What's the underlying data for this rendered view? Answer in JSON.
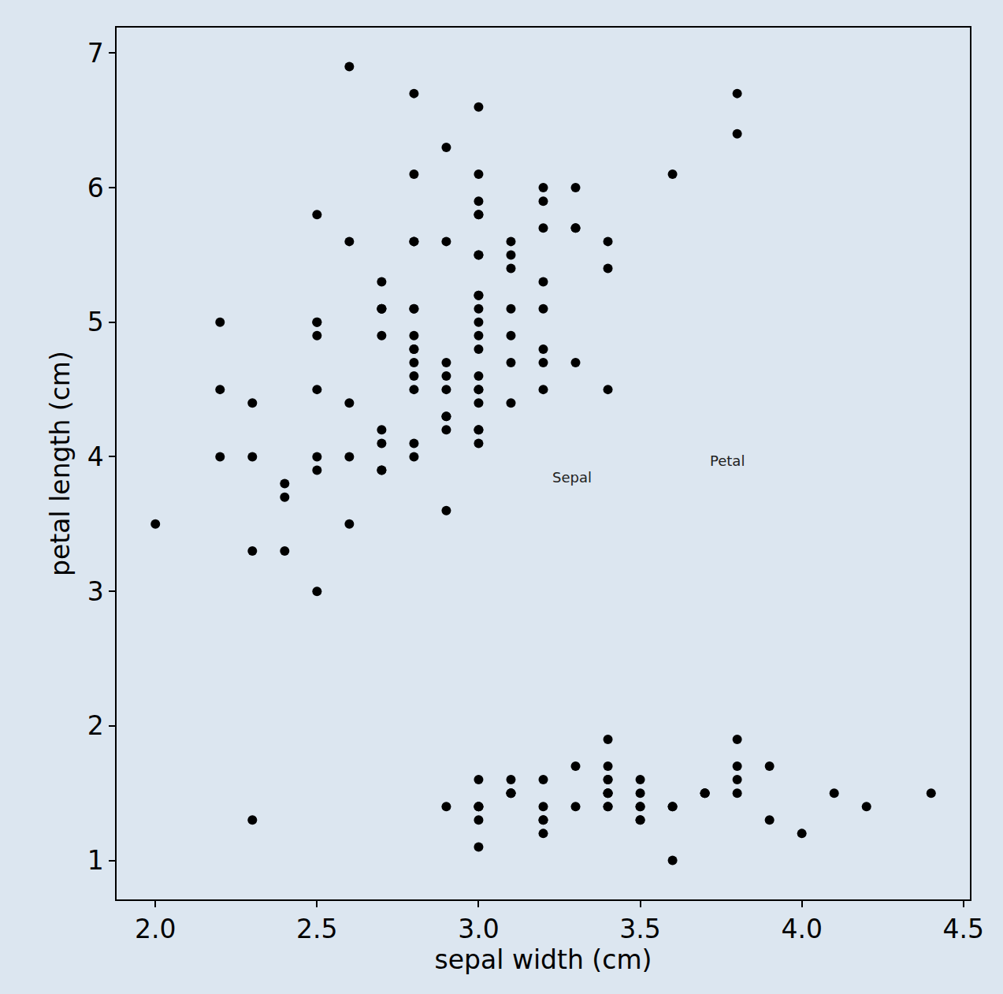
{
  "chart_data": {
    "type": "scatter",
    "x_label": "sepal width (cm)",
    "y_label": "petal length (cm)",
    "color": "#000000",
    "marker": "circle",
    "grid": false,
    "x": [
      3.5,
      3.0,
      3.2,
      3.1,
      3.6,
      3.9,
      3.4,
      3.4,
      2.9,
      3.1,
      3.7,
      3.4,
      3.0,
      3.0,
      4.0,
      4.4,
      3.9,
      3.5,
      3.8,
      3.8,
      3.4,
      3.7,
      3.6,
      3.3,
      3.4,
      3.0,
      3.4,
      3.5,
      3.4,
      3.2,
      3.1,
      3.4,
      4.1,
      4.2,
      3.1,
      3.2,
      3.5,
      3.6,
      3.0,
      3.4,
      3.5,
      2.3,
      3.2,
      3.5,
      3.8,
      3.0,
      3.8,
      3.2,
      3.7,
      3.3,
      3.2,
      3.2,
      3.1,
      2.3,
      2.8,
      2.8,
      3.3,
      2.4,
      2.9,
      2.7,
      2.0,
      3.0,
      2.2,
      2.9,
      2.9,
      3.1,
      3.0,
      2.7,
      2.2,
      2.5,
      3.2,
      2.8,
      2.5,
      2.8,
      2.9,
      3.0,
      2.8,
      3.0,
      2.9,
      2.6,
      2.4,
      2.4,
      2.7,
      2.7,
      3.0,
      3.4,
      3.1,
      2.3,
      3.0,
      2.5,
      2.6,
      3.0,
      2.6,
      2.3,
      2.7,
      3.0,
      2.9,
      2.9,
      2.5,
      2.8,
      3.3,
      2.7,
      3.0,
      2.9,
      3.0,
      3.0,
      2.5,
      2.9,
      2.5,
      3.6,
      3.2,
      2.7,
      3.0,
      2.5,
      2.8,
      3.2,
      3.0,
      3.8,
      2.6,
      2.2,
      3.2,
      2.8,
      2.8,
      2.7,
      3.3,
      3.2,
      2.8,
      3.0,
      2.8,
      3.0,
      2.8,
      3.8,
      2.8,
      2.8,
      2.6,
      3.0,
      3.4,
      3.1,
      3.0,
      3.1,
      3.1,
      3.1,
      2.7,
      3.2,
      3.3,
      3.0,
      2.5,
      3.0,
      3.4,
      3.0
    ],
    "values": [
      1.4,
      1.4,
      1.3,
      1.5,
      1.4,
      1.7,
      1.4,
      1.5,
      1.4,
      1.5,
      1.5,
      1.6,
      1.4,
      1.1,
      1.2,
      1.5,
      1.3,
      1.4,
      1.7,
      1.5,
      1.7,
      1.5,
      1.0,
      1.7,
      1.9,
      1.6,
      1.6,
      1.5,
      1.4,
      1.6,
      1.6,
      1.5,
      1.5,
      1.4,
      1.5,
      1.2,
      1.3,
      1.4,
      1.3,
      1.5,
      1.3,
      1.3,
      1.3,
      1.6,
      1.9,
      1.4,
      1.6,
      1.4,
      1.5,
      1.4,
      4.7,
      4.5,
      4.9,
      4.0,
      4.6,
      4.5,
      4.7,
      3.3,
      4.6,
      3.9,
      3.5,
      4.2,
      4.0,
      4.7,
      3.6,
      4.4,
      4.5,
      4.1,
      4.5,
      3.9,
      4.8,
      4.0,
      4.9,
      4.7,
      4.3,
      4.4,
      4.8,
      5.0,
      4.5,
      3.5,
      3.8,
      3.7,
      3.9,
      5.1,
      4.5,
      4.5,
      4.7,
      4.4,
      4.1,
      4.0,
      4.4,
      4.6,
      4.0,
      3.3,
      4.2,
      4.2,
      4.2,
      4.3,
      3.0,
      4.1,
      6.0,
      5.1,
      5.9,
      5.6,
      5.8,
      6.6,
      4.5,
      6.3,
      5.8,
      6.1,
      5.1,
      5.3,
      5.5,
      5.0,
      5.1,
      5.3,
      5.5,
      6.7,
      6.9,
      5.0,
      5.7,
      4.9,
      6.7,
      4.9,
      5.7,
      6.0,
      4.8,
      4.9,
      5.6,
      5.8,
      6.1,
      6.4,
      5.6,
      5.1,
      5.6,
      6.1,
      5.6,
      5.5,
      4.8,
      5.4,
      5.6,
      5.1,
      5.1,
      5.9,
      5.7,
      5.2,
      5.0,
      5.2,
      5.4,
      5.1
    ],
    "xlim": [
      1.88,
      4.52
    ],
    "xticks": [
      {
        "value": 2.0,
        "label": "2.0"
      },
      {
        "value": 2.5,
        "label": "2.5"
      },
      {
        "value": 3.0,
        "label": "3.0"
      },
      {
        "value": 3.5,
        "label": "3.5"
      },
      {
        "value": 4.0,
        "label": "4.0"
      },
      {
        "value": 4.5,
        "label": "4.5"
      }
    ],
    "ylim": [
      0.71,
      7.19
    ],
    "yticks": [
      1,
      2,
      3,
      4,
      5,
      6,
      7
    ],
    "annotations": [
      {
        "text": "Sepal",
        "x": 3.29,
        "y": 3.85
      },
      {
        "text": "Petal",
        "x": 3.77,
        "y": 3.97
      }
    ]
  }
}
